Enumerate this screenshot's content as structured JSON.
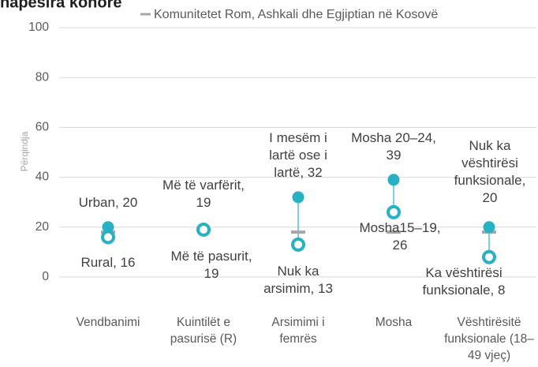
{
  "chart_data": {
    "type": "dotplot",
    "title": "hapësira kohore",
    "y_label": "Përqindja",
    "categories": [
      "Vendbanimi",
      "Kuintilët e pasurisë (R)",
      "Arsimimi i femrës",
      "Mosha",
      "Vështirësitë funksionale (18–49 vjeç)"
    ],
    "series": [
      {
        "color": "#27b1c4",
        "marker": "filled",
        "values": [
          20,
          19,
          32,
          39,
          20
        ],
        "value_labels": [
          "Urban, 20",
          "Më të varfërit, 19",
          "I mesëm i lartë ose i lartë, 32",
          "Mosha 20–24, 39",
          "Nuk ka vështirësi funksionale, 20"
        ]
      },
      {
        "color": "#27b1c4",
        "marker": "ring",
        "values": [
          16,
          19,
          13,
          26,
          8
        ],
        "value_labels": [
          "Rural, 16",
          "Më të pasurit, 19",
          "Nuk ka arsimim, 13",
          "Mosha15–19, 26",
          "Ka vështirësi funksionale, 8"
        ]
      },
      {
        "name": "Komunitetet Rom, Ashkali dhe Egjiptian në Kosovë",
        "color": "#a6a6a6",
        "marker": "dash",
        "values": [
          18,
          19,
          18,
          18,
          18
        ]
      }
    ],
    "ylim": [
      0,
      100
    ],
    "yticks": [
      0,
      20,
      40,
      60,
      80,
      100
    ],
    "grid": true
  }
}
